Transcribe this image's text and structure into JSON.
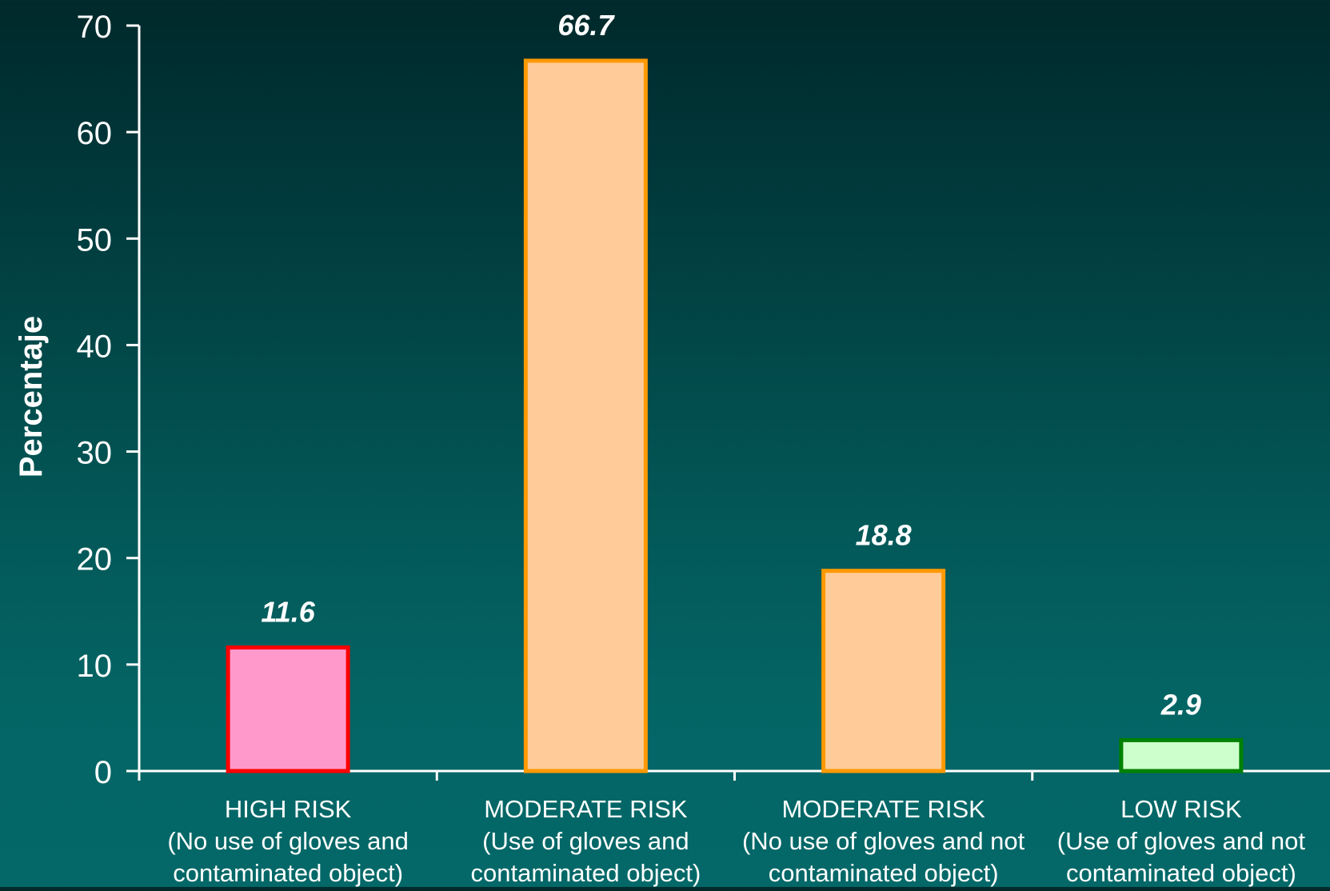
{
  "chart_data": {
    "type": "bar",
    "title": "",
    "xlabel": "",
    "ylabel": "Percentaje",
    "ylim": [
      0,
      70
    ],
    "yticks": [
      0,
      10,
      20,
      30,
      40,
      50,
      60,
      70
    ],
    "grid": false,
    "legend": "none",
    "categories": [
      [
        "HIGH RISK",
        "(No use of gloves and",
        "contaminated object)"
      ],
      [
        "MODERATE RISK",
        "(Use of gloves and",
        "contaminated object)"
      ],
      [
        "MODERATE RISK",
        "(No use of gloves and not",
        "contaminated object)"
      ],
      [
        "LOW RISK",
        "(Use of gloves and not",
        "contaminated object)"
      ]
    ],
    "values": [
      11.6,
      66.7,
      18.8,
      2.9
    ],
    "data_labels": [
      "11.6",
      "66.7",
      "18.8",
      "2.9"
    ],
    "colors": {
      "fills": [
        "#ff99cc",
        "#ffcc99",
        "#ffcc99",
        "#ccffcc"
      ],
      "strokes": [
        "#ff0000",
        "#ff9900",
        "#ff9900",
        "#008000"
      ],
      "axis": "#ffffff",
      "text": "#ffffff"
    }
  }
}
